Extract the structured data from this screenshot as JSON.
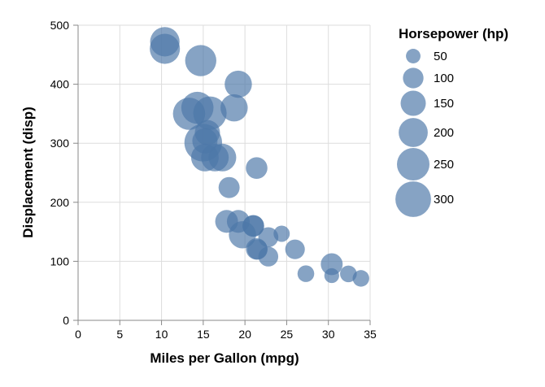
{
  "chart_data": {
    "type": "scatter",
    "title": "",
    "xlabel": "Miles per Gallon (mpg)",
    "ylabel": "Displacement (disp)",
    "xlim": [
      0,
      35
    ],
    "ylim": [
      0,
      500
    ],
    "x_ticks": [
      "0",
      "5",
      "10",
      "15",
      "20",
      "25",
      "30",
      "35"
    ],
    "y_ticks": [
      "0",
      "100",
      "200",
      "300",
      "400",
      "500"
    ],
    "grid": true,
    "point_color": "#4c78a8",
    "size_legend": {
      "title": "Horsepower (hp)",
      "placement": "right",
      "entries": [
        {
          "label": "50",
          "value": 50
        },
        {
          "label": "100",
          "value": 100
        },
        {
          "label": "150",
          "value": 150
        },
        {
          "label": "200",
          "value": 200
        },
        {
          "label": "250",
          "value": 250
        },
        {
          "label": "300",
          "value": 300
        }
      ]
    },
    "points": [
      {
        "mpg": 21.0,
        "disp": 160,
        "hp": 110
      },
      {
        "mpg": 21.0,
        "disp": 160,
        "hp": 110
      },
      {
        "mpg": 22.8,
        "disp": 108,
        "hp": 93
      },
      {
        "mpg": 21.4,
        "disp": 258,
        "hp": 110
      },
      {
        "mpg": 18.7,
        "disp": 360,
        "hp": 175
      },
      {
        "mpg": 18.1,
        "disp": 225,
        "hp": 105
      },
      {
        "mpg": 14.3,
        "disp": 360,
        "hp": 245
      },
      {
        "mpg": 24.4,
        "disp": 146.7,
        "hp": 62
      },
      {
        "mpg": 22.8,
        "disp": 140.8,
        "hp": 95
      },
      {
        "mpg": 19.2,
        "disp": 167.6,
        "hp": 123
      },
      {
        "mpg": 17.8,
        "disp": 167.6,
        "hp": 123
      },
      {
        "mpg": 16.4,
        "disp": 275.8,
        "hp": 180
      },
      {
        "mpg": 17.3,
        "disp": 275.8,
        "hp": 180
      },
      {
        "mpg": 15.2,
        "disp": 275.8,
        "hp": 180
      },
      {
        "mpg": 10.4,
        "disp": 472,
        "hp": 205
      },
      {
        "mpg": 10.4,
        "disp": 460,
        "hp": 215
      },
      {
        "mpg": 14.7,
        "disp": 440,
        "hp": 230
      },
      {
        "mpg": 32.4,
        "disp": 78.7,
        "hp": 66
      },
      {
        "mpg": 30.4,
        "disp": 75.7,
        "hp": 52
      },
      {
        "mpg": 33.9,
        "disp": 71.1,
        "hp": 65
      },
      {
        "mpg": 21.5,
        "disp": 120.1,
        "hp": 97
      },
      {
        "mpg": 15.5,
        "disp": 318,
        "hp": 150
      },
      {
        "mpg": 15.2,
        "disp": 304,
        "hp": 150
      },
      {
        "mpg": 13.3,
        "disp": 350,
        "hp": 245
      },
      {
        "mpg": 19.2,
        "disp": 400,
        "hp": 175
      },
      {
        "mpg": 27.3,
        "disp": 79,
        "hp": 66
      },
      {
        "mpg": 26.0,
        "disp": 120.3,
        "hp": 91
      },
      {
        "mpg": 30.4,
        "disp": 95.1,
        "hp": 113
      },
      {
        "mpg": 15.8,
        "disp": 351,
        "hp": 264
      },
      {
        "mpg": 19.7,
        "disp": 145,
        "hp": 175
      },
      {
        "mpg": 15.0,
        "disp": 301,
        "hp": 335
      },
      {
        "mpg": 21.4,
        "disp": 121,
        "hp": 109
      }
    ]
  }
}
